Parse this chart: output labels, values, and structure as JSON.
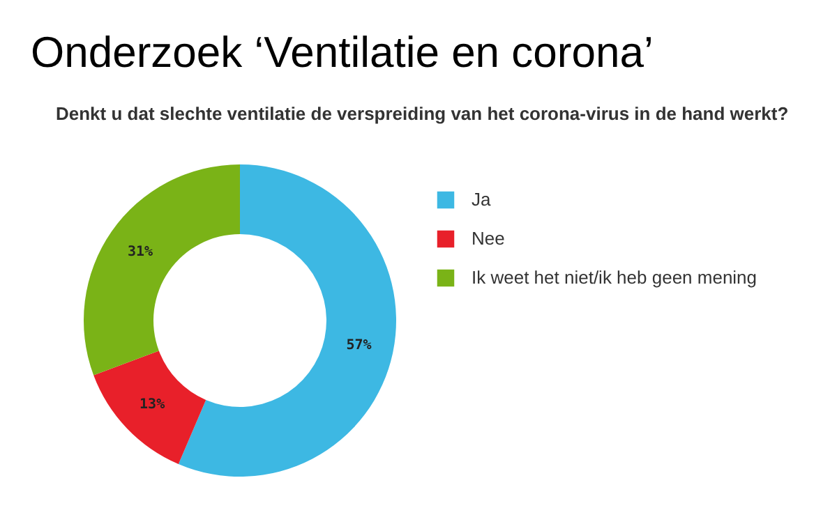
{
  "chart_data": {
    "type": "donut",
    "title": "Onderzoek ‘Ventilatie en corona’",
    "subtitle": "Denkt u dat slechte ventilatie de verspreiding van het corona-virus in de hand werkt?",
    "categories": [
      "Ja",
      "Nee",
      "Ik weet het niet/ik heb geen mening"
    ],
    "values": [
      57,
      13,
      31
    ],
    "colors": [
      "#3db8e3",
      "#e8202a",
      "#7ab317"
    ],
    "value_labels": [
      "57%",
      "13%",
      "31%"
    ],
    "legend": "right"
  }
}
